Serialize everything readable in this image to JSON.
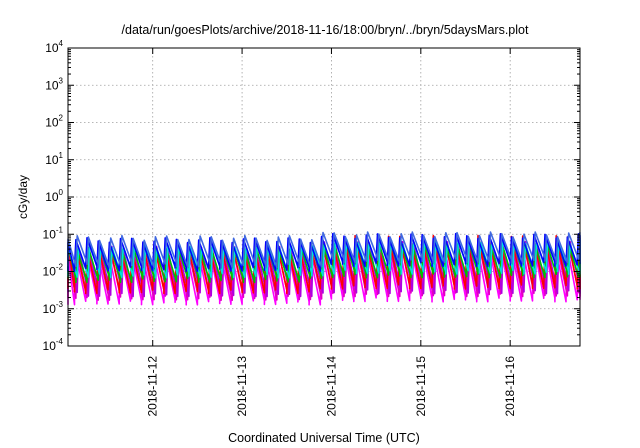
{
  "chart_data": {
    "type": "line",
    "title": "/data/run/goesPlots/archive/2018-11-16/18:00/bryn/../bryn/5daysMars.plot",
    "xlabel": "Coordinated Universal Time (UTC)",
    "ylabel": "cGy/day",
    "yscale": "log",
    "ylim": [
      0.0001,
      10000
    ],
    "xlim": [
      "2018-11-11 01:15",
      "2018-11-16 18:45"
    ],
    "grid": true,
    "x_ticks": [
      {
        "label": "2018-11-12",
        "value": "2018-11-12 00:00"
      },
      {
        "label": "2018-11-13",
        "value": "2018-11-13 00:00"
      },
      {
        "label": "2018-11-14",
        "value": "2018-11-14 00:00"
      },
      {
        "label": "2018-11-15",
        "value": "2018-11-15 00:00"
      },
      {
        "label": "2018-11-16",
        "value": "2018-11-16 00:00"
      }
    ],
    "y_ticks": [
      {
        "base": "10",
        "exp": "-4",
        "value": 0.0001
      },
      {
        "base": "10",
        "exp": "-3",
        "value": 0.001
      },
      {
        "base": "10",
        "exp": "-2",
        "value": 0.01
      },
      {
        "base": "10",
        "exp": "-1",
        "value": 0.1
      },
      {
        "base": "10",
        "exp": "0",
        "value": 1
      },
      {
        "base": "10",
        "exp": "1",
        "value": 10
      },
      {
        "base": "10",
        "exp": "2",
        "value": 100
      },
      {
        "base": "10",
        "exp": "3",
        "value": 1000
      },
      {
        "base": "10",
        "exp": "4",
        "value": 10000
      }
    ],
    "sawtooth_period_hours": 3,
    "series": [
      {
        "color": "#ff00ff",
        "peaks_lo": 0.03,
        "peaks_hi": 0.045,
        "troughs_lo": 0.0015,
        "troughs_hi": 0.0018
      },
      {
        "color": "#e000c0",
        "peaks_lo": 0.035,
        "peaks_hi": 0.05,
        "troughs_lo": 0.002,
        "troughs_hi": 0.0025
      },
      {
        "color": "#b000e0",
        "peaks_lo": 0.04,
        "peaks_hi": 0.055,
        "troughs_lo": 0.0025,
        "troughs_hi": 0.003
      },
      {
        "color": "#ff0000",
        "peaks_lo": 0.05,
        "peaks_hi": 0.08,
        "troughs_lo": 0.003,
        "troughs_hi": 0.004
      },
      {
        "color": "#00c000",
        "peaks_lo": 0.045,
        "peaks_hi": 0.06,
        "troughs_lo": 0.006,
        "troughs_hi": 0.008
      },
      {
        "color": "#00e0e0",
        "peaks_lo": 0.05,
        "peaks_hi": 0.065,
        "troughs_lo": 0.008,
        "troughs_hi": 0.01
      },
      {
        "color": "#0000ff",
        "peaks_lo": 0.07,
        "peaks_hi": 0.09,
        "troughs_lo": 0.012,
        "troughs_hi": 0.016
      },
      {
        "color": "#4169e1",
        "peaks_lo": 0.08,
        "peaks_hi": 0.1,
        "troughs_lo": 0.015,
        "troughs_hi": 0.02
      }
    ]
  }
}
